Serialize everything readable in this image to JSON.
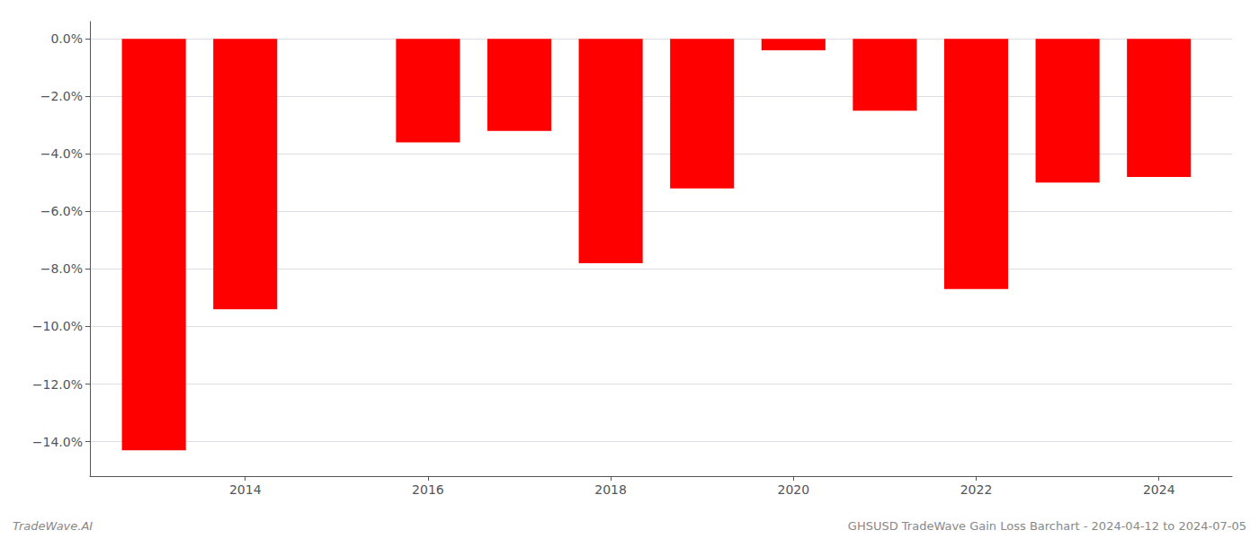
{
  "chart_data": {
    "type": "bar",
    "x": [
      2013,
      2014,
      2016,
      2017,
      2018,
      2019,
      2020,
      2021,
      2022,
      2023,
      2024
    ],
    "values": [
      -14.3,
      -9.4,
      -3.6,
      -3.2,
      -7.8,
      -5.2,
      -0.4,
      -2.5,
      -8.7,
      -5.0,
      -4.8
    ],
    "color": "#ff0000",
    "xlim": [
      2012.3,
      2024.8
    ],
    "xticks": [
      2014,
      2016,
      2018,
      2020,
      2022,
      2024
    ],
    "ylim": [
      -15.2,
      0.6
    ],
    "yticks": [
      {
        "value": 0.0,
        "label": "0.0%"
      },
      {
        "value": -2.0,
        "label": "−2.0%"
      },
      {
        "value": -4.0,
        "label": "−4.0%"
      },
      {
        "value": -6.0,
        "label": "−6.0%"
      },
      {
        "value": -8.0,
        "label": "−8.0%"
      },
      {
        "value": -10.0,
        "label": "−10.0%"
      },
      {
        "value": -12.0,
        "label": "−12.0%"
      },
      {
        "value": -14.0,
        "label": "−14.0%"
      }
    ],
    "grid": true,
    "annotations": [
      "TradeWave.AI",
      "GHSUSD TradeWave Gain Loss Barchart - 2024-04-12 to 2024-07-05"
    ]
  }
}
